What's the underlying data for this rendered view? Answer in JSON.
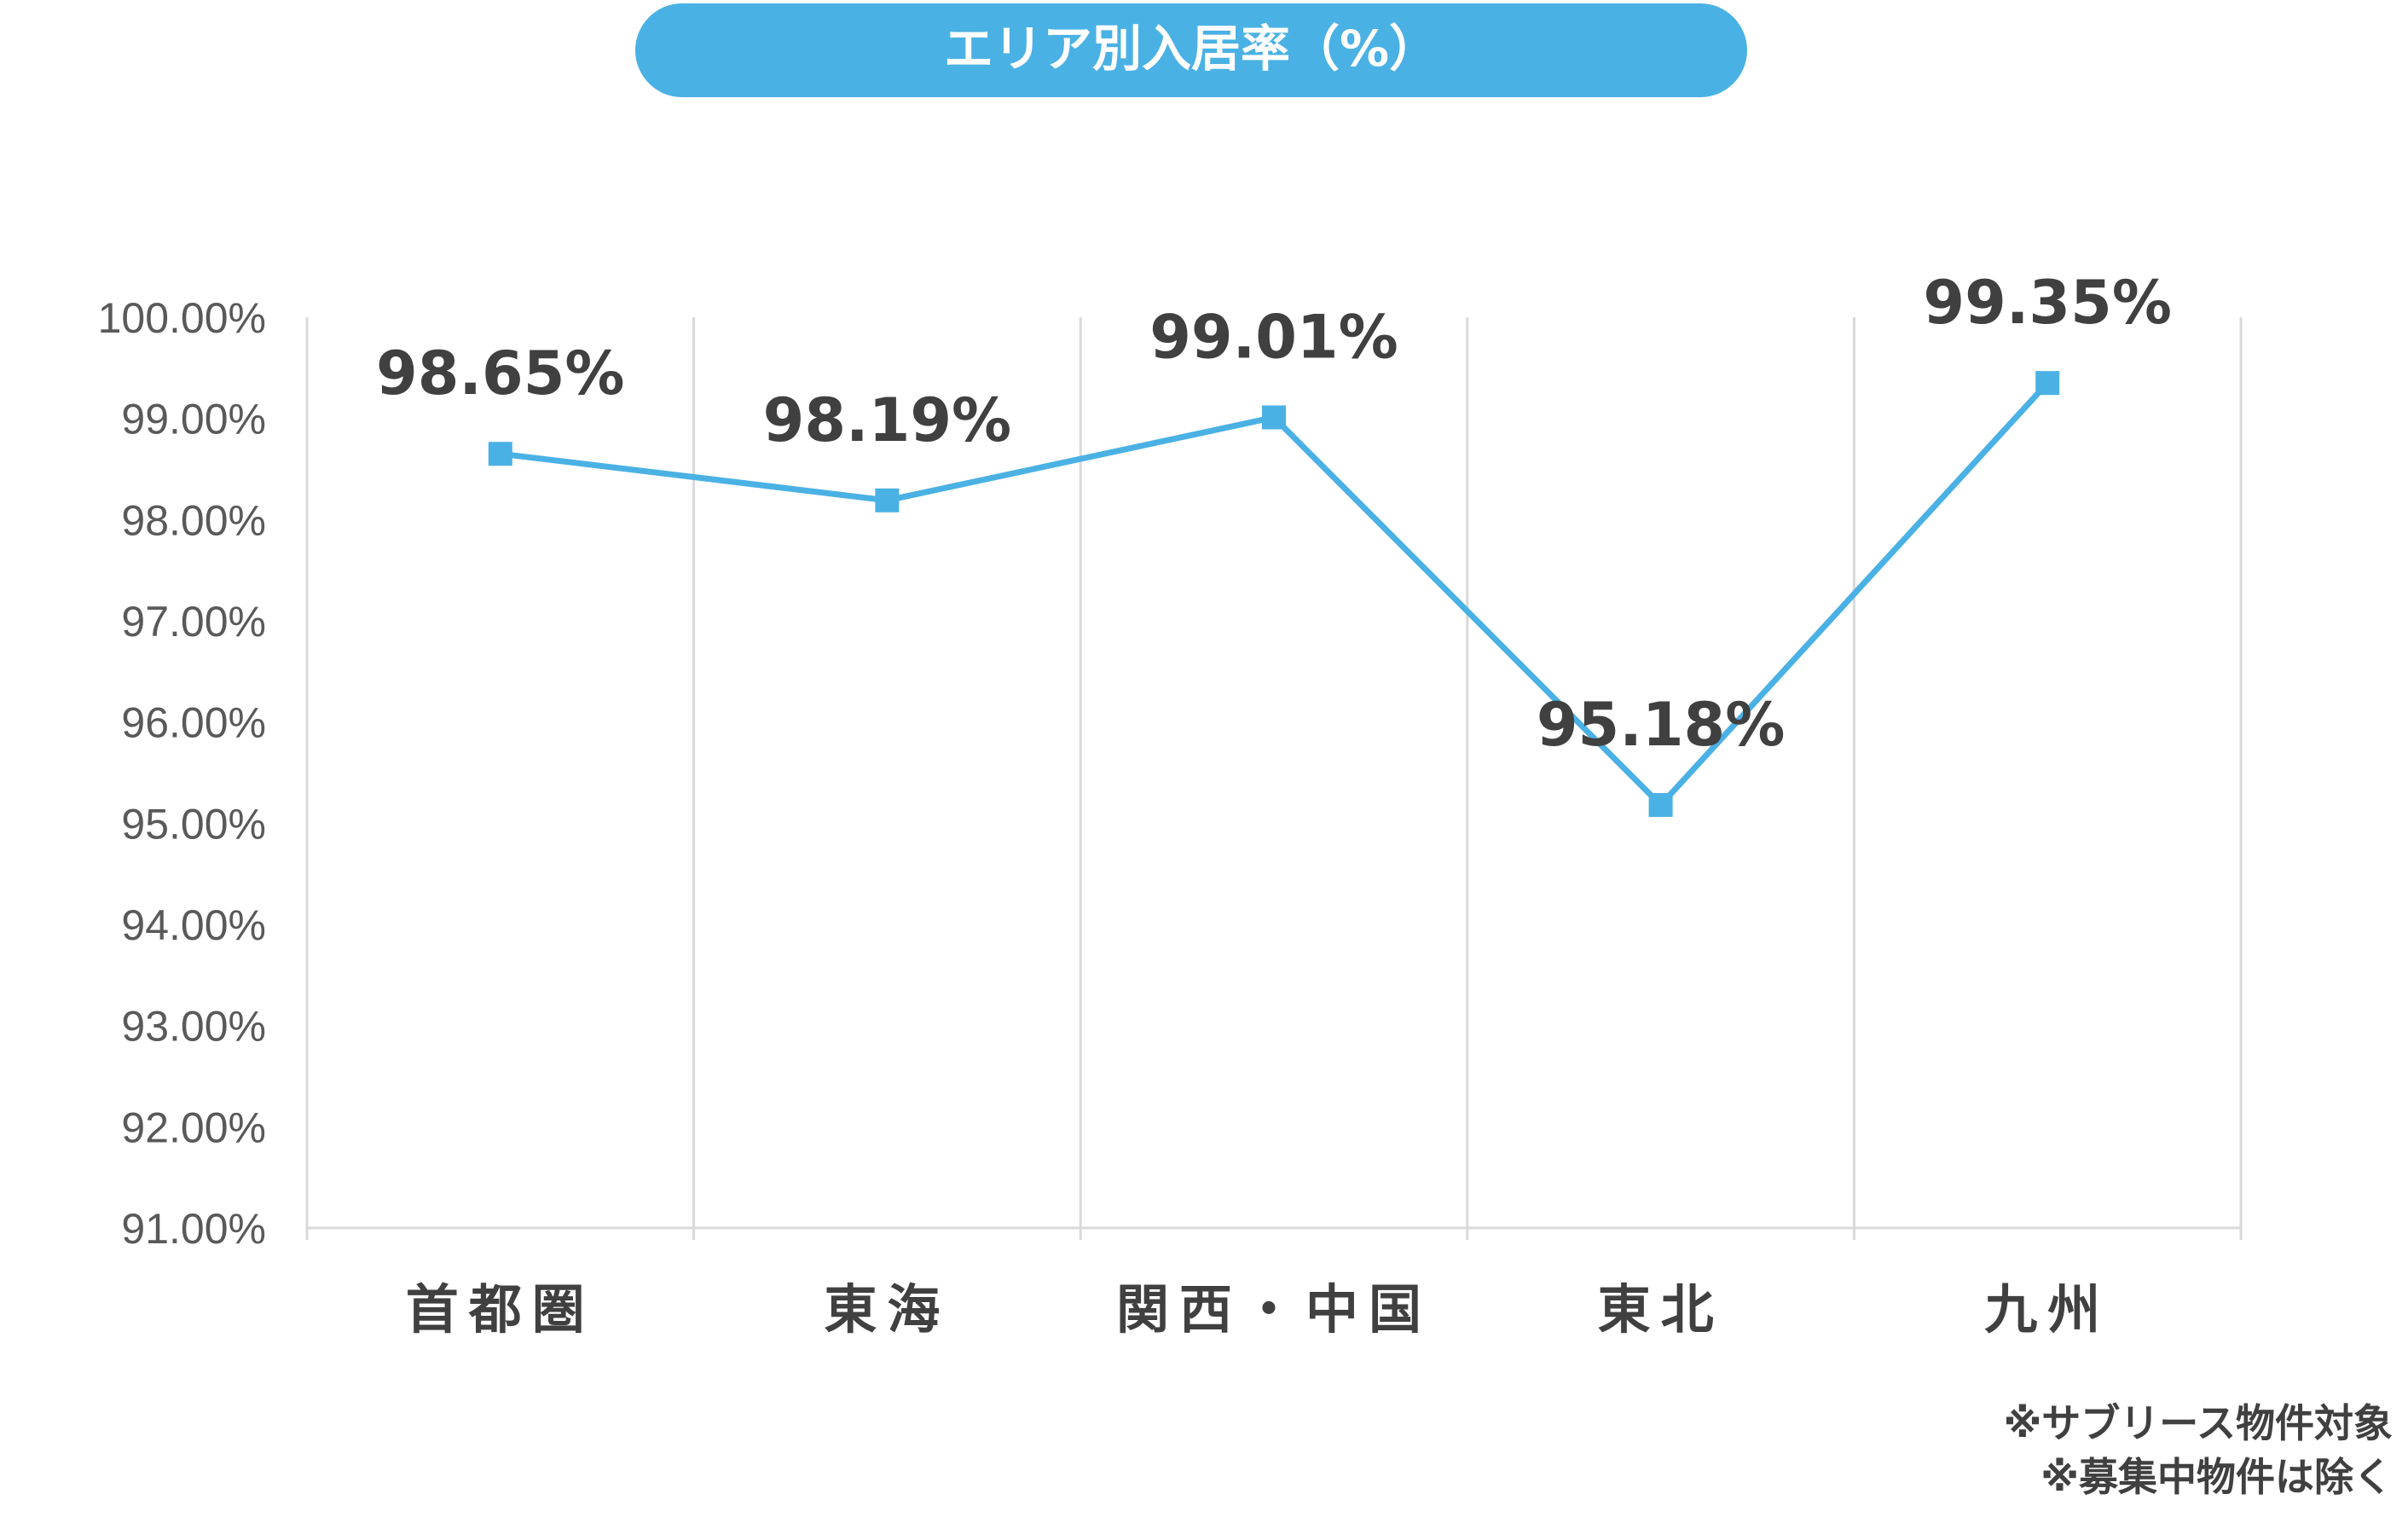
{
  "chart_data": {
    "type": "line",
    "title": "エリア別入居率（%）",
    "categories": [
      "首都圏",
      "東海",
      "関西・中国",
      "東北",
      "九州"
    ],
    "series": [
      {
        "values": [
          98.65,
          98.19,
          99.01,
          95.18,
          99.35
        ],
        "labels": [
          "98.65%",
          "98.19%",
          "99.01%",
          "95.18%",
          "99.35%"
        ]
      }
    ],
    "ylim": [
      91,
      100
    ],
    "yticks": [
      91,
      92,
      93,
      94,
      95,
      96,
      97,
      98,
      99,
      100
    ],
    "ytick_labels": [
      "91.00%",
      "92.00%",
      "93.00%",
      "94.00%",
      "95.00%",
      "96.00%",
      "97.00%",
      "98.00%",
      "99.00%",
      "100.00%"
    ],
    "xlabel": "",
    "ylabel": "",
    "grid": "vertical",
    "legend": "none",
    "marker": "square",
    "colors": {
      "line": "#4AB1E4",
      "title_bg": "#4AB1E4",
      "grid": "#D9D9D9",
      "text": "#404040"
    }
  },
  "notes": [
    "※サブリース物件対象",
    "※募集中物件は除く"
  ]
}
